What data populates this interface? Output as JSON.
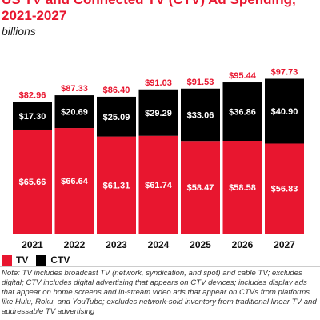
{
  "title": "US TV and Connected TV (CTV) Ad Spending, 2021-2027",
  "subtitle": "billions",
  "note": "Note: TV includes broadcast TV (network, syndication, and spot) and cable TV; excludes digital; CTV includes digital advertising that appears on CTV devices; includes display ads that appear on home screens and in-stream video ads that appear on CTVs from platforms like Hulu, Roku, and YouTube; excludes network-sold inventory from traditional linear TV and addressable TV advertising",
  "colors": {
    "tv": "#e8162f",
    "ctv": "#000000",
    "total_label": "#e8162f"
  },
  "chart_data": {
    "type": "bar",
    "stacked": true,
    "title": "US TV and Connected TV (CTV) Ad Spending, 2021-2027",
    "subtitle": "billions",
    "categories": [
      "2021",
      "2022",
      "2023",
      "2024",
      "2025",
      "2026",
      "2027"
    ],
    "series": [
      {
        "name": "TV",
        "values": [
          65.66,
          66.64,
          61.31,
          61.74,
          58.47,
          58.58,
          56.83
        ],
        "labels": [
          "$65.66",
          "$66.64",
          "$61.31",
          "$61.74",
          "$58.47",
          "$58.58",
          "$56.83"
        ]
      },
      {
        "name": "CTV",
        "values": [
          17.3,
          20.69,
          25.09,
          29.29,
          33.06,
          36.86,
          40.9
        ],
        "labels": [
          "$17.30",
          "$20.69",
          "$25.09",
          "$29.29",
          "$33.06",
          "$36.86",
          "$40.90"
        ]
      }
    ],
    "totals": [
      82.96,
      87.33,
      86.4,
      91.03,
      91.53,
      95.44,
      97.73
    ],
    "total_labels": [
      "$82.96",
      "$87.33",
      "$86.40",
      "$91.03",
      "$91.53",
      "$95.44",
      "$97.73"
    ],
    "legend": {
      "position": "bottom-left",
      "items": [
        "TV",
        "CTV"
      ]
    },
    "grid": false
  }
}
